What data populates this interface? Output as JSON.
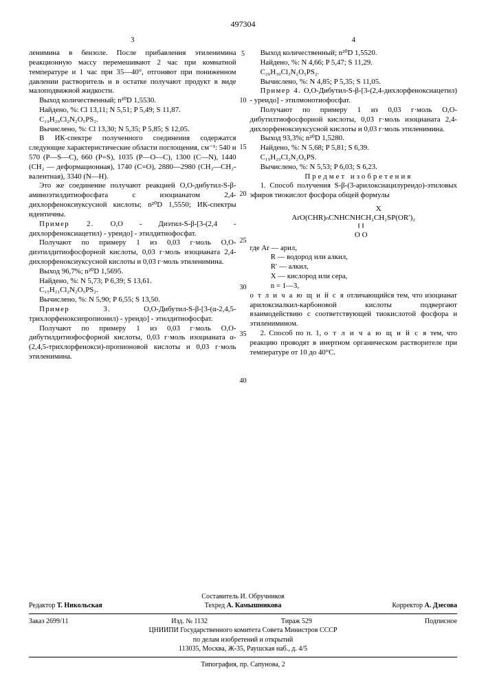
{
  "patent_number": "497304",
  "page_left_num": "3",
  "page_right_num": "4",
  "line_numbers": [
    "5",
    "10",
    "15",
    "20",
    "25",
    "30",
    "35",
    "40"
  ],
  "left": {
    "p1": "ленимина в бензоле. После прибавления этиленимина реакционную массу перемешивают 2 час при комнатной температуре и 1 час при 35—40°, отгоняют при пониженном давлении растворитель и в остатке получают продукт в виде малоподвижной жидкости.",
    "p2": "Выход количественный; n²⁰D 1,5530.",
    "p3": "Найдено, %: Cl 13,11; N 5,51; P 5,49; S 11,87.",
    "p4": "C₁₉H₂₉Cl₂N₂O₅PS₂.",
    "p5": "Вычислено, %: Cl 13,30; N 5,35; P 5,85; S 12,05.",
    "p6": "В ИК-спектре полученного соединения содержатся следующие характеристические области поглощения, см⁻¹: 540 и 570 (P—S—C), 660 (P=S), 1035 (P—O—C), 1300 (C—N), 1440 (CH₂ — деформационная), 1740 (C=O), 2880—2980 (CH₂—CH₂-валентная), 3340 (N—H).",
    "p7": "Это же соединение получают реакцией O,O-дибутил-S-β-аминоэтилдитиофосфата с изоцианатом 2,4-дихлорфеноксиуксусной кислоты; n²⁰D 1,5550; ИК-спектры идентичны.",
    "p8_lead": "Пример 2.",
    "p8_rest": " O,O - Диэтил-S-β-[3-(2,4 - дихлорфеноксиацетил) - уреидо] - этилдитиофосфат.",
    "p9": "Получают по примеру 1 из 0,03 г·моль O,O-диэтилдитиофосфорной кислоты, 0,03 г·моль изоцианата 2,4-дихлорфеноксиуксусной кислоты и 0,03 г·моль этиленимина.",
    "p10": "Выход 96,7%; n²⁰D 1,5695.",
    "p11": "Найдено, %: N 5,73; P 6,39; S 13,61.",
    "p12": "C₁₅H₂₁Cl₂N₂O₅PS₂.",
    "p13": "Вычислено, %: N 5,90; P 6,55; S 13,50.",
    "p14_lead": "Пример 3.",
    "p14_rest": " O,O-Дибутил-S-β-[3-(α-2,4,5-трихлорфеноксипропионил) - уреидо] - этилдитиофосфат.",
    "p15": "Получают по примеру 1 из 0,03 г·моль O,O-дибутилдитиофосфорной кислоты, 0,03 г·моль изоцианата α-(2,4,5-трихлорфенокси)-пропионовой кислоты и 0,03 г·моль этиленимина."
  },
  "right": {
    "p1": "Выход количественный; n²⁰D 1,5520.",
    "p2": "Найдено, %: N 4,66; P 5,47; S 11,29.",
    "p3": "C₂₀H₃₀Cl₃N₂O₅PS₂.",
    "p4": "Вычислено, %: N 4,85; P 5,35; S 11,05.",
    "p5_lead": "Пример 4.",
    "p5_rest": " O,O-Дибутил-S-β-[3-(2,4-дихлорфеноксиацетил) - уреидо] - этилмонотиофосфат.",
    "p6": "Получают по примеру 1 из 0,03 г·моль O,O-дибутилтиофосфорной кислоты, 0,03 г·моль изоцианата 2,4-дихлорфеноксиуксусной кислоты и 0,03 г·моль этиленимина.",
    "p7": "Выход 93,3%; n²⁰D 1,5280.",
    "p8": "Найдено, %: N 5,68; P 5,81; S 6,39.",
    "p9": "C₁₉H₂₉Cl₂N₂O₆PS.",
    "p10": "Вычислено, %: N 5,53; P 6,03; S 6,23.",
    "claims_title": "Предмет изобретения",
    "claim1a": "1. Способ получения S-β-(3-арилоксиацилуреидо)-этиловых эфиров тиокислот фосфора общей формулы",
    "formula_r1": "X",
    "formula_r2": "ArO(CHR)ₙCNHCNHCH₂CH₂SP(OR′)₂",
    "formula_r3": "‖      ‖",
    "formula_r4": "O     O",
    "where_lead": "где Ar — арил,",
    "where_r": "R — водород или алкил,",
    "where_rp": "R′ — алкил,",
    "where_x": "X — кислород или сера,",
    "where_n": "n = 1—3,",
    "claim1b": "отличающийся тем, что изоцианат арилоксиалкил-карбоновой кислоты подвергают взаимодействию с соответствующей тиокислотой фосфора и этиленимином.",
    "claim2": "2. Способ по п. 1, отличающийся тем, что реакцию проводят в инертном органическом растворителе при температуре от 10 до 40°C."
  },
  "footer": {
    "compiler": "Составитель И. Обручников",
    "editor_label": "Редактор",
    "editor_name": "Т. Никольская",
    "tech_label": "Техред",
    "tech_name": "А. Камышникова",
    "corrector_label": "Корректор",
    "corrector_name": "А. Дзесова",
    "order": "Заказ 2699/11",
    "izd": "Изд. № 1132",
    "tirazh": "Тираж 529",
    "sign": "Подписное",
    "org1": "ЦНИИПИ Государственного комитета Совета Министров СССР",
    "org2": "по делам изобретений и открытий",
    "addr": "113035, Москва, Ж-35, Раушская наб., д. 4/5",
    "typo": "Типография, пр. Сапунова, 2"
  }
}
